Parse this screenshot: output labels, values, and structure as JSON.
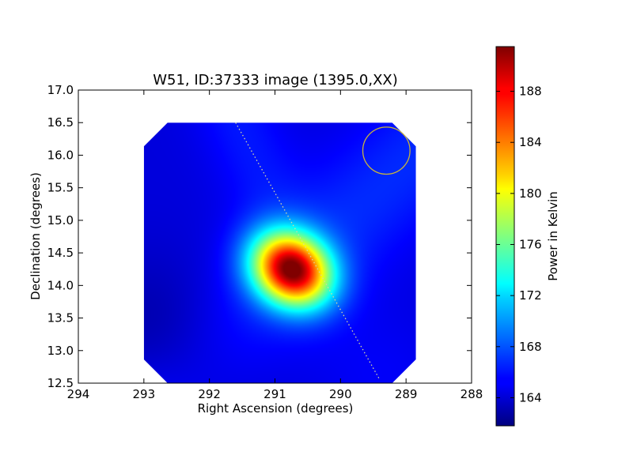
{
  "chart_data": {
    "type": "heatmap",
    "title": "W51, ID:37333 image (1395.0,XX)",
    "xlabel": "Right Ascension (degrees)",
    "ylabel": "Declination (degrees)",
    "xlim": [
      294,
      288
    ],
    "ylim": [
      12.5,
      17.0
    ],
    "xticks": [
      294,
      293,
      292,
      291,
      290,
      289,
      288
    ],
    "xtick_labels": [
      "294",
      "293",
      "292",
      "291",
      "290",
      "289",
      "288"
    ],
    "yticks": [
      12.5,
      13.0,
      13.5,
      14.0,
      14.5,
      15.0,
      15.5,
      16.0,
      16.5,
      17.0
    ],
    "ytick_labels": [
      "12.5",
      "13.0",
      "13.5",
      "14.0",
      "14.5",
      "15.0",
      "15.5",
      "16.0",
      "16.5",
      "17.0"
    ],
    "colorbar": {
      "label": "Power in Kelvin",
      "colormap": "jet",
      "min": 161.8,
      "max": 191.5,
      "ticks": [
        164,
        168,
        172,
        176,
        180,
        184,
        188
      ],
      "tick_labels": [
        "164",
        "168",
        "172",
        "176",
        "180",
        "184",
        "188"
      ]
    },
    "image_extent": {
      "ra_min": 288.85,
      "ra_max": 293.0,
      "dec_min": 12.5,
      "dec_max": 16.5
    },
    "peak": {
      "ra": 290.75,
      "dec": 14.25,
      "value": 191.0
    },
    "background_level": 164.5,
    "beam_circle": {
      "ra": 289.3,
      "dec": 16.07,
      "radius_deg": 0.36,
      "color": "#c8b43c"
    },
    "dotted_line": {
      "start": [
        291.6,
        16.5
      ],
      "end": [
        289.4,
        12.55
      ],
      "color": "#d8d8a0"
    }
  }
}
